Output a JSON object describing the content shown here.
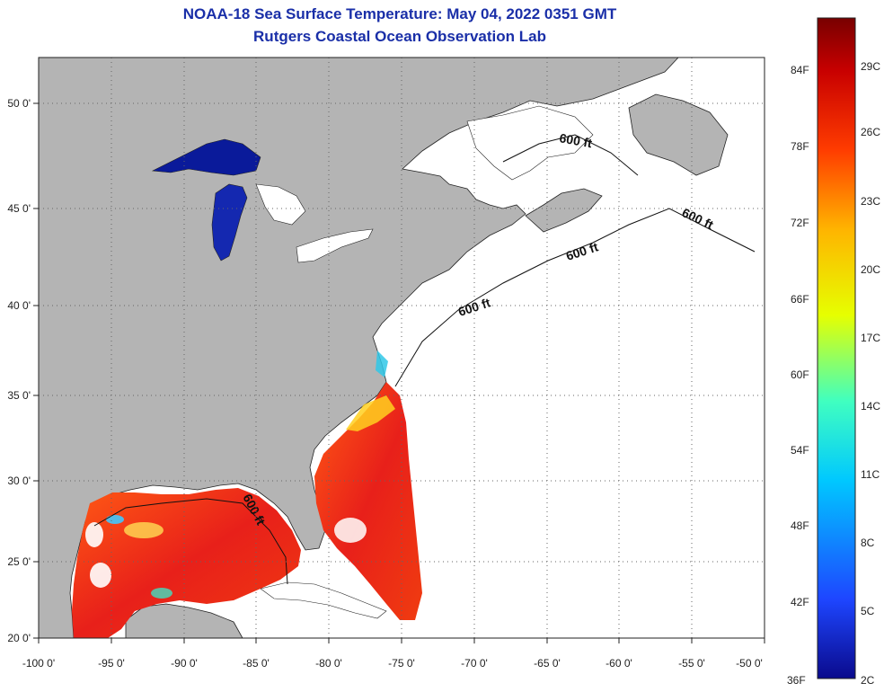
{
  "title_line1": "NOAA-18 Sea Surface Temperature:  May 04, 2022 0351 GMT",
  "title_line2": "Rutgers Coastal Ocean Observation Lab",
  "map": {
    "lon_range": [
      -100,
      -50
    ],
    "lat_range": [
      20,
      52
    ],
    "lon_ticks": [
      "-100 0'",
      "-95 0'",
      "-90 0'",
      "-85 0'",
      "-80 0'",
      "-75 0'",
      "-70 0'",
      "-65 0'",
      "-60 0'",
      "-55 0'",
      "-50 0'"
    ],
    "lat_ticks": [
      "50 0'",
      "45 0'",
      "40 0'",
      "35 0'",
      "30 0'",
      "25 0'",
      "20 0'"
    ],
    "contour_label": "600 ft",
    "grid": true,
    "colors": {
      "land": "#b4b4b4",
      "ocean_nodata": "#ffffff",
      "lakes_cold": "#0a1a9a",
      "warm": "#e8201a"
    }
  },
  "colorbar": {
    "f_labels": [
      "84F",
      "78F",
      "72F",
      "66F",
      "60F",
      "54F",
      "48F",
      "42F",
      "36F"
    ],
    "c_labels": [
      "29C",
      "26C",
      "23C",
      "20C",
      "17C",
      "14C",
      "11C",
      "8C",
      "5C",
      "2C"
    ],
    "colors": [
      "#0a0a8c",
      "#1e46ff",
      "#00c8ff",
      "#40ffc0",
      "#e6ff00",
      "#ffb400",
      "#ff3c00",
      "#c80000",
      "#780000"
    ]
  }
}
